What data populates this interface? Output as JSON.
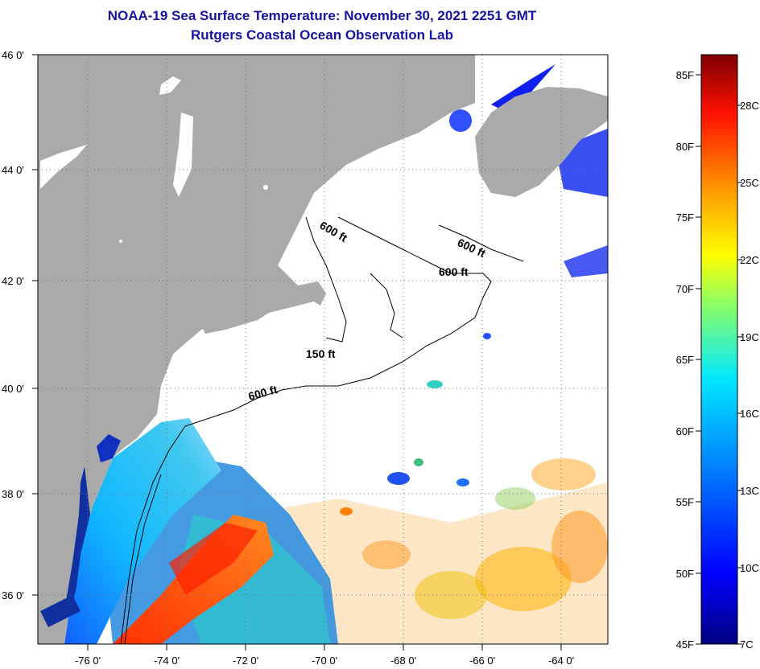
{
  "header": {
    "title": "NOAA-19 Sea Surface Temperature:  November 30, 2021 2251 GMT",
    "subtitle": "Rutgers Coastal Ocean Observation Lab"
  },
  "map": {
    "lat_labels": [
      "46 0'",
      "44 0'",
      "42 0'",
      "40 0'",
      "38 0'",
      "36 0'"
    ],
    "lon_labels": [
      "-76 0'",
      "-74 0'",
      "-72 0'",
      "-70 0'",
      "-68 0'",
      "-66 0'",
      "-64 0'"
    ],
    "lat_range": [
      35,
      46
    ],
    "lon_range": [
      -77,
      -62.5
    ],
    "contours": [
      {
        "label": "600 ft"
      },
      {
        "label": "600 ft"
      },
      {
        "label": "600 ft"
      },
      {
        "label": "150 ft"
      },
      {
        "label": "600 ft"
      }
    ],
    "colors": {
      "land": "#aaaaaa",
      "water_no_data": "#ffffff",
      "title": "#1414a0"
    }
  },
  "colorbar": {
    "fahrenheit_labels": [
      "85F",
      "80F",
      "75F",
      "70F",
      "65F",
      "60F",
      "55F",
      "50F",
      "45F"
    ],
    "celsius_labels": [
      "28C",
      "25C",
      "22C",
      "19C",
      "16C",
      "13C",
      "10C",
      "7C"
    ],
    "fahrenheit_range": [
      45,
      86
    ],
    "colors": [
      "#000080",
      "#0000ff",
      "#0080ff",
      "#00ffff",
      "#80ff80",
      "#ffff00",
      "#ff8000",
      "#ff0000",
      "#800000"
    ]
  }
}
